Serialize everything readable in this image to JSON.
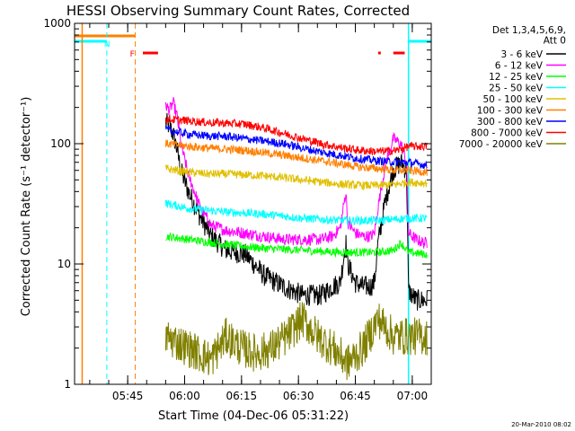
{
  "chart_data": {
    "type": "line",
    "title": "HESSI Observing Summary Count Rates, Corrected",
    "xlabel": "Start Time (04-Dec-06 05:31:22)",
    "ylabel": "Corrected Count Rate (s⁻¹ detector⁻¹)",
    "ylog": true,
    "ylim": [
      1,
      1000
    ],
    "xlim_minutes": [
      0,
      94
    ],
    "x_ticks": [
      {
        "t": 14,
        "label": "05:45"
      },
      {
        "t": 29,
        "label": "06:00"
      },
      {
        "t": 44,
        "label": "06:15"
      },
      {
        "t": 59,
        "label": "06:30"
      },
      {
        "t": 74,
        "label": "06:45"
      },
      {
        "t": 89,
        "label": "07:00"
      }
    ],
    "y_ticks": [
      {
        "v": 1,
        "label": "1"
      },
      {
        "v": 10,
        "label": "10"
      },
      {
        "v": 100,
        "label": "100"
      },
      {
        "v": 1000,
        "label": "1000"
      }
    ],
    "legend_header": [
      "Det 1,3,4,5,6,9,",
      "Att 0"
    ],
    "series": [
      {
        "name": "3 - 6 keV",
        "color": "#000000",
        "x": [
          24,
          25,
          26,
          27,
          28,
          30,
          33,
          36,
          40,
          45,
          50,
          55,
          60,
          65,
          68,
          70,
          71.5,
          72,
          74,
          76,
          78,
          79,
          80,
          82,
          84,
          86,
          87.5,
          88,
          90,
          92,
          93
        ],
        "y": [
          150,
          140,
          120,
          90,
          60,
          40,
          25,
          17,
          13,
          12,
          8,
          6.5,
          5.5,
          5.5,
          6.5,
          7,
          15,
          10,
          7,
          6.5,
          6.5,
          7,
          15,
          35,
          60,
          70,
          60,
          6,
          5,
          5,
          5
        ]
      },
      {
        "name": "6 - 12 keV",
        "color": "#ff00ff",
        "x": [
          24,
          25,
          26,
          27,
          28,
          30,
          33,
          36,
          40,
          45,
          50,
          55,
          60,
          65,
          68,
          70,
          71.5,
          72,
          74,
          76,
          78,
          79,
          80,
          82,
          84,
          86,
          87.5,
          88,
          90,
          92,
          93
        ],
        "y": [
          210,
          190,
          220,
          170,
          100,
          55,
          30,
          21,
          19,
          18,
          17,
          16,
          16,
          16,
          17,
          20,
          40,
          22,
          18,
          17,
          17,
          18,
          30,
          70,
          110,
          100,
          70,
          18,
          16,
          15,
          15
        ]
      },
      {
        "name": "12 - 25 keV",
        "color": "#00ff00",
        "x": [
          24,
          30,
          40,
          50,
          60,
          70,
          80,
          84,
          86,
          88,
          93
        ],
        "y": [
          17,
          16,
          14.5,
          13.5,
          13,
          12.5,
          12.5,
          13,
          15,
          12.5,
          12
        ]
      },
      {
        "name": "25 - 50 keV",
        "color": "#00ffff",
        "x": [
          24,
          30,
          40,
          50,
          60,
          70,
          80,
          88,
          93
        ],
        "y": [
          32,
          29,
          27,
          26,
          24,
          23,
          23,
          24,
          24
        ]
      },
      {
        "name": "50 - 100 keV",
        "color": "#e0c000",
        "x": [
          24,
          30,
          35,
          40,
          45,
          50,
          55,
          60,
          65,
          70,
          75,
          80,
          85,
          88,
          93
        ],
        "y": [
          62,
          58,
          56,
          56,
          55,
          54,
          52,
          50,
          48,
          46,
          45,
          45,
          46,
          48,
          47
        ]
      },
      {
        "name": "100 - 300 keV",
        "color": "#ff8000",
        "x": [
          24,
          30,
          35,
          40,
          45,
          50,
          55,
          60,
          65,
          70,
          75,
          80,
          85,
          88,
          93
        ],
        "y": [
          100,
          95,
          92,
          90,
          88,
          84,
          80,
          76,
          72,
          68,
          64,
          62,
          60,
          60,
          58
        ]
      },
      {
        "name": "300 - 800 keV",
        "color": "#0000ff",
        "x": [
          24,
          30,
          35,
          40,
          45,
          50,
          55,
          60,
          65,
          70,
          75,
          80,
          85,
          88,
          93
        ],
        "y": [
          130,
          120,
          116,
          115,
          110,
          105,
          100,
          92,
          85,
          80,
          75,
          72,
          70,
          70,
          66
        ]
      },
      {
        "name": "800 - 7000 keV",
        "color": "#ff0000",
        "x": [
          24,
          30,
          35,
          40,
          45,
          50,
          55,
          60,
          65,
          70,
          75,
          80,
          85,
          88,
          93
        ],
        "y": [
          160,
          155,
          150,
          148,
          145,
          135,
          122,
          110,
          100,
          93,
          88,
          86,
          88,
          95,
          95
        ]
      },
      {
        "name": "7000 - 20000 keV",
        "color": "#808000",
        "x": [
          24,
          30,
          36,
          40,
          44,
          48,
          52,
          56,
          60,
          64,
          68,
          72,
          76,
          80,
          84,
          88,
          93
        ],
        "y": [
          2.5,
          2,
          1.6,
          2.5,
          2,
          1.8,
          2,
          2.5,
          3.5,
          2.5,
          2,
          1.5,
          2,
          3.5,
          2.5,
          2.5,
          2.5
        ]
      }
    ],
    "markers": {
      "colors": {
        "orange": "#ff8000",
        "cyan": "#00ffff",
        "red": "#ff0000"
      },
      "labels": [
        "N",
        "F"
      ],
      "orange_intervals": [
        [
          0,
          16
        ]
      ],
      "cyan_intervals": [
        [
          -1,
          8.5
        ],
        [
          88,
          94
        ]
      ],
      "red_intervals": [
        [
          18,
          22
        ],
        [
          80,
          80.7
        ],
        [
          84,
          87
        ]
      ],
      "orange_solid_lines": [
        2
      ],
      "orange_dashed_lines": [
        16
      ],
      "cyan_solid_lines": [
        88
      ],
      "cyan_dashed_lines": [
        8.5,
        94
      ]
    }
  },
  "footer": {
    "timestamp": "20-Mar-2010 08:02"
  }
}
